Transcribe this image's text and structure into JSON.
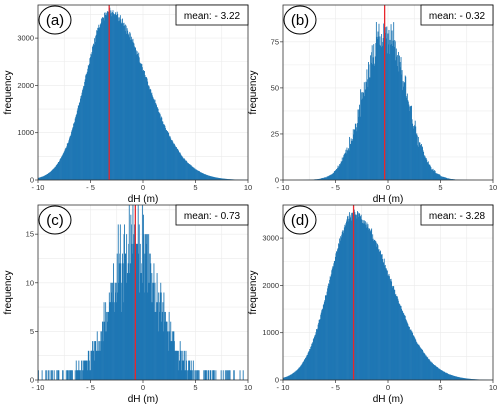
{
  "chart_data": [
    {
      "type": "histogram",
      "panel_label": "(a)",
      "mean_label": "mean: - 3.22",
      "mean": -3.22,
      "sd": 2.6,
      "skew": 0.35,
      "peak": 3550,
      "noise": 0.03,
      "xlabel": "dH (m)",
      "ylabel": "frequency",
      "xlim": [
        -10,
        10
      ],
      "ylim": [
        0,
        3700
      ],
      "xticks": [
        -10,
        -5,
        0,
        5,
        10
      ],
      "yticks": [
        0,
        1000,
        2000,
        3000
      ],
      "bar_color": "#1f77b4",
      "mean_line_color": "#e8262b"
    },
    {
      "type": "histogram",
      "panel_label": "(b)",
      "mean_label": "mean: - 0.32",
      "mean": -0.32,
      "sd": 2.0,
      "skew": 0.0,
      "peak": 80,
      "noise": 0.14,
      "xlabel": "dH (m)",
      "ylabel": "frequency",
      "xlim": [
        -10,
        10
      ],
      "ylim": [
        0,
        95
      ],
      "xticks": [
        -10,
        -5,
        0,
        5,
        10
      ],
      "yticks": [
        0,
        25,
        50,
        75
      ],
      "bar_color": "#1f77b4",
      "mean_line_color": "#e8262b"
    },
    {
      "type": "histogram",
      "panel_label": "(c)",
      "mean_label": "mean: - 0.73",
      "mean": -0.73,
      "sd": 2.3,
      "skew": 0.0,
      "peak": 13.5,
      "noise": 0.35,
      "integer_counts": true,
      "xlabel": "dH (m)",
      "ylabel": "frequency",
      "xlim": [
        -10,
        10
      ],
      "ylim": [
        0,
        18
      ],
      "xticks": [
        -10,
        -5,
        0,
        5,
        10
      ],
      "yticks": [
        0,
        5,
        10,
        15
      ],
      "bar_color": "#1f77b4",
      "mean_line_color": "#e8262b"
    },
    {
      "type": "histogram",
      "panel_label": "(d)",
      "mean_label": "mean: - 3.28",
      "mean": -3.28,
      "sd": 2.6,
      "skew": 0.35,
      "peak": 3500,
      "noise": 0.03,
      "xlabel": "dH (m)",
      "ylabel": "frequency",
      "xlim": [
        -10,
        10
      ],
      "ylim": [
        0,
        3700
      ],
      "xticks": [
        -10,
        -5,
        0,
        5,
        10
      ],
      "yticks": [
        0,
        1000,
        2000,
        3000
      ],
      "bar_color": "#1f77b4",
      "mean_line_color": "#e8262b"
    }
  ]
}
